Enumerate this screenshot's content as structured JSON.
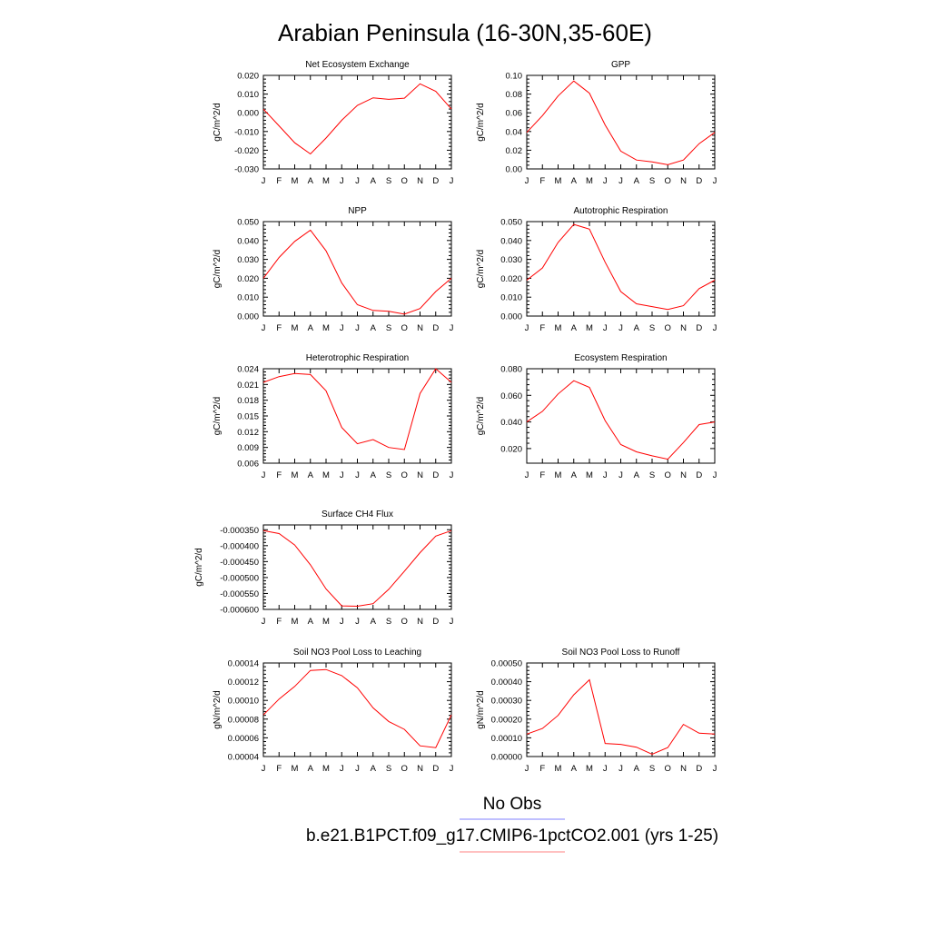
{
  "title": "Arabian Peninsula (16-30N,35-60E)",
  "legend": [
    {
      "label": "No Obs",
      "color": "#8080ff"
    },
    {
      "label": "b.e21.B1PCT.f09_g17.CMIP6-1pctCO2.001 (yrs 1-25)",
      "color": "#ff8080"
    }
  ],
  "series_color": "#ff0000",
  "chart_data": [
    {
      "type": "line",
      "title": "Net Ecosystem Exchange",
      "ylabel": "gC/m^2/d",
      "categories": [
        "J",
        "F",
        "M",
        "A",
        "M",
        "J",
        "J",
        "A",
        "S",
        "O",
        "N",
        "D",
        "J"
      ],
      "values": [
        0.002,
        -0.007,
        -0.016,
        -0.022,
        -0.0135,
        -0.004,
        0.004,
        0.008,
        0.0072,
        0.0078,
        0.0155,
        0.0115,
        0.002
      ],
      "ylim": [
        -0.03,
        0.02
      ],
      "yticks": [
        -0.03,
        -0.02,
        -0.01,
        0,
        0.01,
        0.02
      ],
      "yticklabels": [
        "-0.030",
        "-0.020",
        "-0.010",
        "0.000",
        "0.010",
        "0.020"
      ]
    },
    {
      "type": "line",
      "title": "GPP",
      "ylabel": "gC/m^2/d",
      "categories": [
        "J",
        "F",
        "M",
        "A",
        "M",
        "J",
        "J",
        "A",
        "S",
        "O",
        "N",
        "D",
        "J"
      ],
      "values": [
        0.039,
        0.057,
        0.078,
        0.094,
        0.081,
        0.047,
        0.019,
        0.0095,
        0.0075,
        0.0045,
        0.0095,
        0.027,
        0.039
      ],
      "ylim": [
        0,
        0.1
      ],
      "yticks": [
        0,
        0.02,
        0.04,
        0.06,
        0.08,
        0.1
      ],
      "yticklabels": [
        "0.00",
        "0.02",
        "0.04",
        "0.06",
        "0.08",
        "0.10"
      ]
    },
    {
      "type": "line",
      "title": "NPP",
      "ylabel": "gC/m^2/d",
      "categories": [
        "J",
        "F",
        "M",
        "A",
        "M",
        "J",
        "J",
        "A",
        "S",
        "O",
        "N",
        "D",
        "J"
      ],
      "values": [
        0.02,
        0.031,
        0.0395,
        0.0455,
        0.0345,
        0.0175,
        0.006,
        0.003,
        0.0025,
        0.001,
        0.004,
        0.013,
        0.02
      ],
      "ylim": [
        0,
        0.05
      ],
      "yticks": [
        0,
        0.01,
        0.02,
        0.03,
        0.04,
        0.05
      ],
      "yticklabels": [
        "0.000",
        "0.010",
        "0.020",
        "0.030",
        "0.040",
        "0.050"
      ]
    },
    {
      "type": "line",
      "title": "Autotrophic Respiration",
      "ylabel": "gC/m^2/d",
      "categories": [
        "J",
        "F",
        "M",
        "A",
        "M",
        "J",
        "J",
        "A",
        "S",
        "O",
        "N",
        "D",
        "J"
      ],
      "values": [
        0.019,
        0.0255,
        0.039,
        0.0485,
        0.046,
        0.0285,
        0.013,
        0.0065,
        0.005,
        0.0035,
        0.0055,
        0.0145,
        0.019
      ],
      "ylim": [
        0,
        0.05
      ],
      "yticks": [
        0,
        0.01,
        0.02,
        0.03,
        0.04,
        0.05
      ],
      "yticklabels": [
        "0.000",
        "0.010",
        "0.020",
        "0.030",
        "0.040",
        "0.050"
      ]
    },
    {
      "type": "line",
      "title": "Heterotrophic Respiration",
      "ylabel": "gC/m^2/d",
      "categories": [
        "J",
        "F",
        "M",
        "A",
        "M",
        "J",
        "J",
        "A",
        "S",
        "O",
        "N",
        "D",
        "J"
      ],
      "values": [
        0.0214,
        0.0225,
        0.0231,
        0.0229,
        0.0198,
        0.0128,
        0.0097,
        0.0105,
        0.009,
        0.0086,
        0.0193,
        0.024,
        0.0214
      ],
      "ylim": [
        0.006,
        0.024
      ],
      "yticks": [
        0.006,
        0.009,
        0.012,
        0.015,
        0.018,
        0.021,
        0.024
      ],
      "yticklabels": [
        "0.006",
        "0.009",
        "0.012",
        "0.015",
        "0.018",
        "0.021",
        "0.024"
      ]
    },
    {
      "type": "line",
      "title": "Ecosystem Respiration",
      "ylabel": "gC/m^2/d",
      "categories": [
        "J",
        "F",
        "M",
        "A",
        "M",
        "J",
        "J",
        "A",
        "S",
        "O",
        "N",
        "D",
        "J"
      ],
      "values": [
        0.04,
        0.048,
        0.061,
        0.071,
        0.066,
        0.041,
        0.023,
        0.0175,
        0.0145,
        0.012,
        0.0245,
        0.038,
        0.04
      ],
      "ylim": [
        0.009,
        0.08
      ],
      "yticks": [
        0.02,
        0.04,
        0.06,
        0.08
      ],
      "yticklabels": [
        "0.020",
        "0.040",
        "0.060",
        "0.080"
      ]
    },
    {
      "type": "line",
      "title": "Surface CH4 Flux",
      "ylabel": "gC/m^2/d",
      "categories": [
        "J",
        "F",
        "M",
        "A",
        "M",
        "J",
        "J",
        "A",
        "S",
        "O",
        "N",
        "D",
        "J"
      ],
      "values": [
        -0.000353,
        -0.000362,
        -0.000398,
        -0.00046,
        -0.000536,
        -0.000589,
        -0.00059,
        -0.000582,
        -0.000537,
        -0.00048,
        -0.000422,
        -0.00037,
        -0.000353
      ],
      "ylim": [
        -0.0006,
        -0.000335
      ],
      "yticks": [
        -0.0006,
        -0.00055,
        -0.0005,
        -0.00045,
        -0.0004,
        -0.00035
      ],
      "yticklabels": [
        "-0.000600",
        "-0.000550",
        "-0.000500",
        "-0.000450",
        "-0.000400",
        "-0.000350"
      ]
    },
    {
      "type": "line",
      "title": "Soil NO3 Pool Loss to Leaching",
      "ylabel": "gN/m^2/d",
      "categories": [
        "J",
        "F",
        "M",
        "A",
        "M",
        "J",
        "J",
        "A",
        "S",
        "O",
        "N",
        "D",
        "J"
      ],
      "values": [
        8.45e-05,
        0.0001015,
        0.000115,
        0.000132,
        0.000133,
        0.0001265,
        0.0001135,
        9.2e-05,
        7.75e-05,
        6.9e-05,
        5.15e-05,
        4.95e-05,
        8.45e-05
      ],
      "ylim": [
        4e-05,
        0.00014
      ],
      "yticks": [
        4e-05,
        6e-05,
        8e-05,
        0.0001,
        0.00012,
        0.00014
      ],
      "yticklabels": [
        "0.00004",
        "0.00006",
        "0.00008",
        "0.00010",
        "0.00012",
        "0.00014"
      ]
    },
    {
      "type": "line",
      "title": "Soil NO3 Pool Loss to Runoff",
      "ylabel": "gN/m^2/d",
      "categories": [
        "J",
        "F",
        "M",
        "A",
        "M",
        "J",
        "J",
        "A",
        "S",
        "O",
        "N",
        "D",
        "J"
      ],
      "values": [
        0.00012,
        0.00015,
        0.00022,
        0.00033,
        0.00041,
        7e-05,
        6.5e-05,
        5e-05,
        1.2e-05,
        4.8e-05,
        0.000172,
        0.000125,
        0.00012
      ],
      "ylim": [
        0,
        0.0005
      ],
      "yticks": [
        0,
        0.0001,
        0.0002,
        0.0003,
        0.0004,
        0.0005
      ],
      "yticklabels": [
        "0.00000",
        "0.00010",
        "0.00020",
        "0.00030",
        "0.00040",
        "0.00050"
      ]
    }
  ]
}
